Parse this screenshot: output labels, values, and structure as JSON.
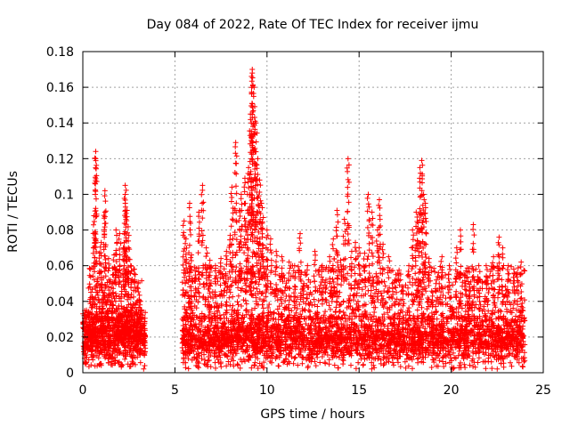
{
  "chart_data": {
    "type": "scatter",
    "title": "Day 084 of 2022, Rate Of TEC Index for receiver ijmu",
    "xlabel": "GPS time / hours",
    "ylabel": "ROTI / TECUs",
    "xlim": [
      0,
      25
    ],
    "ylim": [
      0,
      0.18
    ],
    "x_ticks": [
      "0",
      "5",
      "10",
      "15",
      "20",
      "25"
    ],
    "y_ticks": [
      "0",
      "0.02",
      "0.04",
      "0.06",
      "0.08",
      "0.1",
      "0.12",
      "0.14",
      "0.16",
      "0.18"
    ],
    "grid": true,
    "marker": "+",
    "color": "#ff0000",
    "data_gap_hours": [
      3.4,
      5.2
    ],
    "series": [
      {
        "points": [
          [
            0.4,
            0.058
          ],
          [
            0.6,
            0.088
          ],
          [
            0.7,
            0.124
          ],
          [
            0.7,
            0.12
          ],
          [
            0.9,
            0.067
          ],
          [
            1.0,
            0.073
          ],
          [
            1.2,
            0.102
          ],
          [
            1.2,
            0.09
          ],
          [
            1.4,
            0.064
          ],
          [
            1.5,
            0.052
          ],
          [
            1.7,
            0.066
          ],
          [
            1.8,
            0.08
          ],
          [
            2.0,
            0.078
          ],
          [
            2.2,
            0.07
          ],
          [
            2.3,
            0.105
          ],
          [
            2.3,
            0.1
          ],
          [
            2.4,
            0.091
          ],
          [
            2.5,
            0.077
          ],
          [
            2.6,
            0.06
          ],
          [
            2.8,
            0.058
          ],
          [
            3.0,
            0.05
          ],
          [
            3.1,
            0.038
          ],
          [
            0.2,
            0.035
          ],
          [
            0.5,
            0.042
          ],
          [
            1.1,
            0.045
          ],
          [
            1.6,
            0.04
          ],
          [
            2.1,
            0.048
          ],
          [
            2.7,
            0.036
          ],
          [
            3.2,
            0.03
          ],
          [
            5.5,
            0.085
          ],
          [
            5.6,
            0.075
          ],
          [
            5.8,
            0.095
          ],
          [
            5.9,
            0.066
          ],
          [
            6.1,
            0.057
          ],
          [
            6.3,
            0.09
          ],
          [
            6.5,
            0.105
          ],
          [
            6.7,
            0.07
          ],
          [
            6.9,
            0.063
          ],
          [
            7.2,
            0.06
          ],
          [
            7.5,
            0.064
          ],
          [
            7.8,
            0.068
          ],
          [
            8.0,
            0.077
          ],
          [
            8.1,
            0.104
          ],
          [
            8.3,
            0.129
          ],
          [
            8.5,
            0.091
          ],
          [
            8.6,
            0.1
          ],
          [
            8.8,
            0.109
          ],
          [
            8.9,
            0.08
          ],
          [
            9.0,
            0.115
          ],
          [
            9.1,
            0.145
          ],
          [
            9.2,
            0.17
          ],
          [
            9.2,
            0.168
          ],
          [
            9.3,
            0.16
          ],
          [
            9.4,
            0.14
          ],
          [
            9.5,
            0.12
          ],
          [
            9.6,
            0.108
          ],
          [
            9.7,
            0.095
          ],
          [
            9.8,
            0.087
          ],
          [
            10.0,
            0.08
          ],
          [
            10.2,
            0.075
          ],
          [
            10.5,
            0.068
          ],
          [
            10.8,
            0.065
          ],
          [
            11.2,
            0.062
          ],
          [
            11.5,
            0.06
          ],
          [
            11.8,
            0.078
          ],
          [
            12.2,
            0.06
          ],
          [
            12.6,
            0.068
          ],
          [
            13.0,
            0.06
          ],
          [
            13.4,
            0.065
          ],
          [
            13.6,
            0.075
          ],
          [
            13.8,
            0.091
          ],
          [
            14.0,
            0.063
          ],
          [
            14.2,
            0.086
          ],
          [
            14.4,
            0.12
          ],
          [
            14.6,
            0.068
          ],
          [
            14.8,
            0.073
          ],
          [
            15.0,
            0.07
          ],
          [
            15.3,
            0.067
          ],
          [
            15.5,
            0.1
          ],
          [
            15.7,
            0.09
          ],
          [
            16.0,
            0.08
          ],
          [
            16.1,
            0.097
          ],
          [
            16.3,
            0.072
          ],
          [
            16.6,
            0.065
          ],
          [
            17.0,
            0.055
          ],
          [
            17.4,
            0.048
          ],
          [
            17.7,
            0.06
          ],
          [
            17.9,
            0.08
          ],
          [
            18.1,
            0.09
          ],
          [
            18.2,
            0.084
          ],
          [
            18.3,
            0.115
          ],
          [
            18.4,
            0.119
          ],
          [
            18.5,
            0.1
          ],
          [
            18.6,
            0.095
          ],
          [
            18.8,
            0.064
          ],
          [
            19.2,
            0.052
          ],
          [
            19.5,
            0.065
          ],
          [
            19.9,
            0.06
          ],
          [
            20.3,
            0.07
          ],
          [
            20.5,
            0.08
          ],
          [
            20.8,
            0.057
          ],
          [
            21.2,
            0.083
          ],
          [
            21.5,
            0.06
          ],
          [
            21.9,
            0.06
          ],
          [
            22.3,
            0.065
          ],
          [
            22.6,
            0.076
          ],
          [
            22.8,
            0.07
          ],
          [
            23.1,
            0.06
          ],
          [
            23.4,
            0.058
          ],
          [
            23.6,
            0.056
          ],
          [
            23.8,
            0.062
          ],
          [
            11.0,
            0.048
          ],
          [
            12.0,
            0.05
          ],
          [
            13.2,
            0.052
          ],
          [
            14.9,
            0.05
          ],
          [
            16.8,
            0.05
          ],
          [
            19.0,
            0.045
          ],
          [
            21.0,
            0.048
          ],
          [
            22.0,
            0.05
          ],
          [
            23.0,
            0.046
          ]
        ],
        "dense_bands": [
          {
            "x": [
              0.0,
              3.4
            ],
            "y": [
              0.002,
              0.035
            ],
            "count": 900
          },
          {
            "x": [
              0.3,
              3.2
            ],
            "y": [
              0.03,
              0.06
            ],
            "count": 170
          },
          {
            "x": [
              5.4,
              24.0
            ],
            "y": [
              0.002,
              0.032
            ],
            "count": 4600
          },
          {
            "x": [
              5.4,
              24.0
            ],
            "y": [
              0.03,
              0.06
            ],
            "count": 900
          }
        ]
      }
    ]
  }
}
